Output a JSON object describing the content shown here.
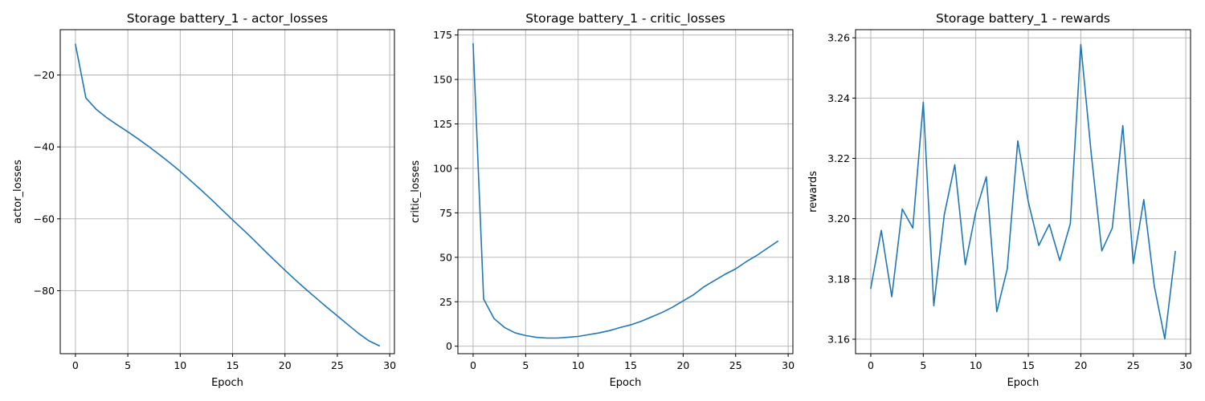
{
  "chart_data": [
    {
      "type": "line",
      "title": "Storage battery_1 - actor_losses",
      "xlabel": "Epoch",
      "ylabel": "actor_losses",
      "xlim": [
        -1.45,
        30.45
      ],
      "ylim": [
        -97.5,
        -7.4
      ],
      "xticks": [
        0,
        5,
        10,
        15,
        20,
        25,
        30
      ],
      "yticks": [
        -80,
        -60,
        -40,
        -20
      ],
      "ytick_labels": [
        "−80",
        "−60",
        "−40",
        "−20"
      ],
      "grid": true,
      "color": "#1f77b4",
      "x": [
        0,
        1,
        2,
        3,
        4,
        5,
        6,
        7,
        8,
        9,
        10,
        11,
        12,
        13,
        14,
        15,
        16,
        17,
        18,
        19,
        20,
        21,
        22,
        23,
        24,
        25,
        26,
        27,
        28,
        29
      ],
      "y": [
        -11.5,
        -26.4,
        -29.6,
        -31.9,
        -33.9,
        -35.8,
        -37.8,
        -39.9,
        -42.1,
        -44.4,
        -46.8,
        -49.4,
        -52.0,
        -54.7,
        -57.5,
        -60.3,
        -63.0,
        -65.8,
        -68.7,
        -71.5,
        -74.3,
        -77.0,
        -79.6,
        -82.1,
        -84.6,
        -87.0,
        -89.4,
        -91.8,
        -93.9,
        -95.3
      ]
    },
    {
      "type": "line",
      "title": "Storage battery_1 - critic_losses",
      "xlabel": "Epoch",
      "ylabel": "critic_losses",
      "xlim": [
        -1.45,
        30.45
      ],
      "ylim": [
        -4.2,
        178.0
      ],
      "xticks": [
        0,
        5,
        10,
        15,
        20,
        25,
        30
      ],
      "yticks": [
        0,
        25,
        50,
        75,
        100,
        125,
        150,
        175
      ],
      "ytick_labels": [
        "0",
        "25",
        "50",
        "75",
        "100",
        "125",
        "150",
        "175"
      ],
      "grid": true,
      "color": "#1f77b4",
      "x": [
        0,
        1,
        2,
        3,
        4,
        5,
        6,
        7,
        8,
        9,
        10,
        11,
        12,
        13,
        14,
        15,
        16,
        17,
        18,
        19,
        20,
        21,
        22,
        23,
        24,
        25,
        26,
        27,
        28,
        29
      ],
      "y": [
        170.0,
        26.5,
        15.5,
        10.5,
        7.5,
        6.0,
        5.0,
        4.6,
        4.6,
        5.0,
        5.5,
        6.5,
        7.5,
        8.8,
        10.5,
        12.0,
        14.0,
        16.5,
        19.0,
        22.0,
        25.5,
        29.0,
        33.5,
        37.0,
        40.5,
        43.5,
        47.5,
        51.0,
        55.0,
        59.0
      ]
    },
    {
      "type": "line",
      "title": "Storage battery_1 - rewards",
      "xlabel": "Epoch",
      "ylabel": "rewards",
      "xlim": [
        -1.45,
        30.45
      ],
      "ylim": [
        3.1552,
        3.2627
      ],
      "xticks": [
        0,
        5,
        10,
        15,
        20,
        25,
        30
      ],
      "yticks": [
        3.16,
        3.18,
        3.2,
        3.22,
        3.24,
        3.26
      ],
      "ytick_labels": [
        "3.16",
        "3.18",
        "3.20",
        "3.22",
        "3.24",
        "3.26"
      ],
      "grid": true,
      "color": "#1f77b4",
      "x": [
        0,
        1,
        2,
        3,
        4,
        5,
        6,
        7,
        8,
        9,
        10,
        11,
        12,
        13,
        14,
        15,
        16,
        17,
        18,
        19,
        20,
        21,
        22,
        23,
        24,
        25,
        26,
        27,
        28,
        29
      ],
      "y": [
        3.1769,
        3.1961,
        3.1741,
        3.2032,
        3.1969,
        3.2386,
        3.1711,
        3.2013,
        3.2179,
        3.1847,
        3.2023,
        3.2139,
        3.1691,
        3.1834,
        3.2258,
        3.2056,
        3.1911,
        3.1981,
        3.1861,
        3.1983,
        3.2578,
        3.2213,
        3.1893,
        3.1969,
        3.2309,
        3.1851,
        3.2063,
        3.1776,
        3.1601,
        3.1891
      ]
    }
  ]
}
